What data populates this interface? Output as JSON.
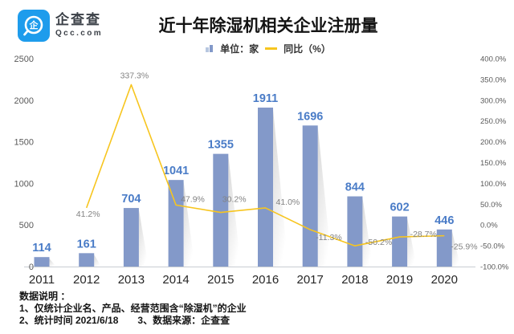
{
  "brand": {
    "name": "企查查",
    "domain": "Qcc.com",
    "logo_color": "#1e9cec"
  },
  "title": "近十年除湿机相关企业注册量",
  "footer": {
    "line1": "数据说明 ：",
    "line2": "1、仅统计企业名、产品、经营范围含“除湿机”的企业",
    "line3": "2、统计时间 2021/6/18　　3、数据来源：企查查"
  },
  "chart_data": {
    "type": "bar+line combo",
    "title": "近十年除湿机相关企业注册量",
    "categories": [
      "2011",
      "2012",
      "2013",
      "2014",
      "2015",
      "2016",
      "2017",
      "2018",
      "2019",
      "2020"
    ],
    "series": [
      {
        "name": "单位：家",
        "type": "bar",
        "values": [
          114,
          161,
          704,
          1041,
          1355,
          1911,
          1696,
          844,
          602,
          446
        ],
        "color": "#8399c9",
        "label_color": "#4a7cc7"
      },
      {
        "name": "同比（%）",
        "type": "line",
        "values": [
          null,
          41.2,
          337.3,
          47.9,
          30.2,
          41.0,
          -11.3,
          -50.2,
          -28.7,
          -25.9
        ],
        "color": "#f7c51e",
        "label_color": "#828282"
      }
    ],
    "left_axis": {
      "min": 0,
      "max": 2500,
      "step": 500
    },
    "right_axis": {
      "min": -100,
      "max": 400,
      "step": 50,
      "suffix": "%"
    },
    "grid": false,
    "legend_position": "top",
    "axis_line_color": "#c9cdd3",
    "tick_label_color": "#595959",
    "x_label_color": "#262626"
  }
}
